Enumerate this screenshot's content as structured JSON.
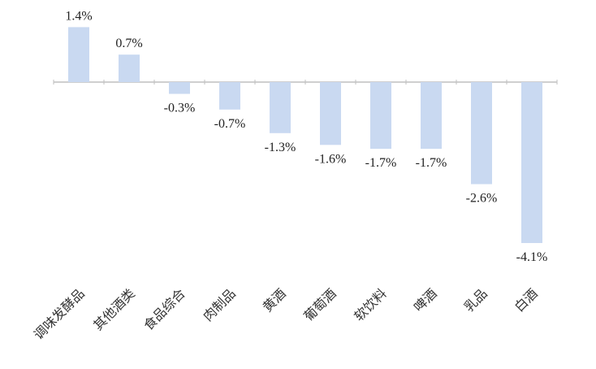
{
  "chart_data": {
    "type": "bar",
    "categories": [
      "调味发酵品",
      "其他酒类",
      "食品综合",
      "肉制品",
      "黄酒",
      "葡萄酒",
      "软饮料",
      "啤酒",
      "乳品",
      "白酒"
    ],
    "values": [
      1.4,
      0.7,
      -0.3,
      -0.7,
      -1.3,
      -1.6,
      -1.7,
      -1.7,
      -2.6,
      -4.1
    ],
    "value_labels": [
      "1.4%",
      "0.7%",
      "-0.3%",
      "-0.7%",
      "-1.3%",
      "-1.6%",
      "-1.7%",
      "-1.7%",
      "-2.6%",
      "-4.1%"
    ],
    "title": "",
    "xlabel": "",
    "ylabel": "",
    "ylim": [
      -4.1,
      1.4
    ],
    "grid": false,
    "legend": "none",
    "bar_color": "#c9d9f1",
    "axis_color": "#bfbfbf"
  }
}
